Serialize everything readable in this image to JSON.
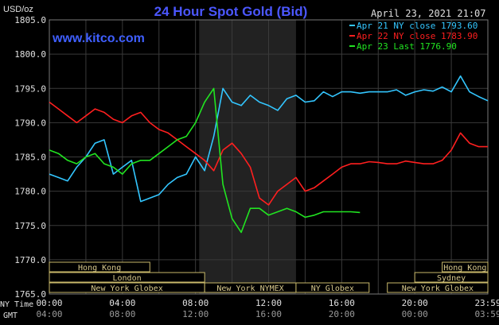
{
  "header": {
    "title": "24 Hour Spot Gold (Bid)",
    "timestamp": "April 23, 2021 21:07",
    "unit": "USD/oz",
    "watermark": "www.kitco.com"
  },
  "footer": {
    "ny_time_label": "NY Time",
    "gmt_label": "GMT"
  },
  "colors": {
    "background": "#000000",
    "title": "#4b57ff",
    "watermark": "#3f5fff",
    "apr21": "#33c6ff",
    "apr22": "#ff1f1f",
    "apr23": "#21e421",
    "grid": "#3a3a3a",
    "session_box": "#c9b96a"
  },
  "chart_data": {
    "type": "line",
    "title": "24 Hour Spot Gold (Bid)",
    "ylabel": "USD/oz",
    "ylim": [
      1765,
      1805
    ],
    "yticks": [
      "1805.0",
      "1800.0",
      "1795.0",
      "1790.0",
      "1785.0",
      "1780.0",
      "1775.0",
      "1770.0",
      "1765.0"
    ],
    "xticks_ny": [
      "00:00",
      "04:00",
      "08:00",
      "12:00",
      "16:00",
      "20:00",
      "23:59"
    ],
    "xticks_gmt": [
      "04:00",
      "08:00",
      "12:00",
      "16:00",
      "20:00",
      "00:00",
      "03:59"
    ],
    "grid": true,
    "legend_position": "top-right",
    "x": [
      0,
      0.5,
      1,
      1.5,
      2,
      2.5,
      3,
      3.5,
      4,
      4.5,
      5,
      5.5,
      6,
      6.5,
      7,
      7.5,
      8,
      8.5,
      9,
      9.5,
      10,
      10.5,
      11,
      11.5,
      12,
      12.5,
      13,
      13.5,
      14,
      14.5,
      15,
      15.5,
      16,
      16.5,
      17,
      17.5,
      18,
      18.5,
      19,
      19.5,
      20,
      20.5,
      21,
      21.5,
      22,
      22.5,
      23,
      23.5,
      24
    ],
    "series": [
      {
        "name": "Apr 21 NY close 1793.60",
        "values": [
          1782.5,
          1782.0,
          1781.5,
          1783.5,
          1785.0,
          1787.0,
          1787.5,
          1782.5,
          1783.5,
          1784.5,
          1778.5,
          1779.0,
          1779.5,
          1781.0,
          1782.0,
          1782.5,
          1785.0,
          1783.0,
          1788.0,
          1795.0,
          1793.0,
          1792.5,
          1794.0,
          1793.0,
          1792.5,
          1791.8,
          1793.5,
          1794.0,
          1793.0,
          1793.2,
          1794.5,
          1793.8,
          1794.5,
          1794.5,
          1794.3,
          1794.5,
          1794.5,
          1794.5,
          1794.8,
          1794.0,
          1794.5,
          1794.8,
          1794.6,
          1795.2,
          1794.5,
          1796.8,
          1794.5,
          1793.8,
          1793.2
        ]
      },
      {
        "name": "Apr 22 NY close 1783.90",
        "values": [
          1793.0,
          1792.0,
          1791.0,
          1790.0,
          1791.0,
          1792.0,
          1791.5,
          1790.5,
          1790.0,
          1791.0,
          1791.5,
          1790.0,
          1789.0,
          1788.5,
          1787.5,
          1786.5,
          1785.5,
          1784.5,
          1783.0,
          1786.0,
          1787.0,
          1785.5,
          1783.5,
          1779.0,
          1778.0,
          1780.0,
          1781.0,
          1782.0,
          1780.0,
          1780.5,
          1781.5,
          1782.5,
          1783.5,
          1784.0,
          1784.0,
          1784.3,
          1784.2,
          1784.0,
          1784.0,
          1784.4,
          1784.2,
          1784.0,
          1784.0,
          1784.5,
          1786.0,
          1788.5,
          1787.0,
          1786.5,
          1786.5
        ]
      },
      {
        "name": "Apr 23 Last 1776.90",
        "values": [
          1786.0,
          1785.5,
          1784.5,
          1784.0,
          1785.0,
          1785.5,
          1784.0,
          1783.5,
          1782.5,
          1784.0,
          1784.5,
          1784.5,
          1785.5,
          1786.5,
          1787.5,
          1788.0,
          1790.0,
          1793.0,
          1795.0,
          1781.0,
          1776.0,
          1774.0,
          1777.5,
          1777.5,
          1776.5,
          1777.0,
          1777.5,
          1777.0,
          1776.2,
          1776.5,
          1777.0,
          1777.0,
          1777.0,
          1777.0,
          1776.9,
          null,
          null,
          null,
          null,
          null,
          null,
          null,
          null,
          null,
          null,
          null,
          null,
          null,
          null
        ]
      }
    ],
    "sessions_row1": [
      "Hong Kong",
      "Hong Kong"
    ],
    "sessions_row2": [
      "London",
      "Sydney"
    ],
    "sessions_row3": [
      "New York Globex",
      "New York NYMEX",
      "NY Globex",
      "New York Globex"
    ],
    "shaded_region_ny_hours": [
      8.2,
      13.5
    ]
  }
}
